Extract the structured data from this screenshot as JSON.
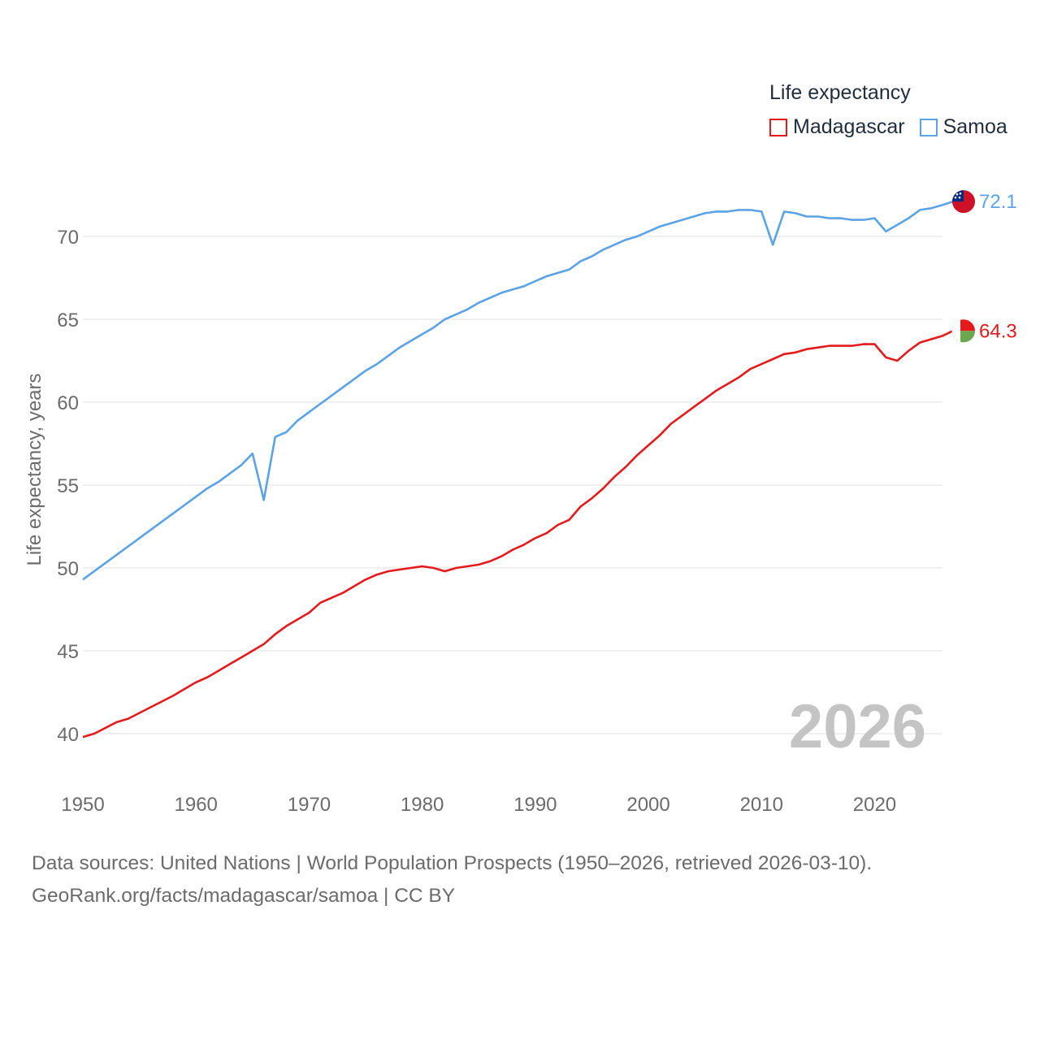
{
  "legend": {
    "title": "Life expectancy",
    "items": [
      {
        "label": "Madagascar",
        "color": "#e41a1c"
      },
      {
        "label": "Samoa",
        "color": "#5ba3e6"
      }
    ]
  },
  "sources": {
    "line1": "Data sources: United Nations | World Population Prospects (1950–2026, retrieved 2026-03-10).",
    "line2": "GeoRank.org/facts/madagascar/samoa | CC BY"
  },
  "chart_data": {
    "type": "line",
    "title": "Life expectancy",
    "xlabel": "",
    "ylabel": "Life expectancy, years",
    "xlim": [
      1950,
      2026
    ],
    "ylim": [
      38,
      73
    ],
    "grid": true,
    "year_watermark": "2026",
    "x_ticks": [
      1950,
      1960,
      1970,
      1980,
      1990,
      2000,
      2010,
      2020
    ],
    "y_ticks": [
      40,
      45,
      50,
      55,
      60,
      65,
      70
    ],
    "series": [
      {
        "name": "Madagascar",
        "color": "#e41a1c",
        "end_label": "64.3",
        "flag_icon": "madagascar-flag-icon",
        "points": [
          [
            1950,
            39.8
          ],
          [
            1951,
            40.0
          ],
          [
            1953,
            40.7
          ],
          [
            1954,
            40.9
          ],
          [
            1956,
            41.6
          ],
          [
            1958,
            42.3
          ],
          [
            1959,
            42.7
          ],
          [
            1960,
            43.1
          ],
          [
            1961,
            43.4
          ],
          [
            1962,
            43.8
          ],
          [
            1963,
            44.2
          ],
          [
            1964,
            44.6
          ],
          [
            1965,
            45.0
          ],
          [
            1966,
            45.4
          ],
          [
            1967,
            46.0
          ],
          [
            1968,
            46.5
          ],
          [
            1969,
            46.9
          ],
          [
            1970,
            47.3
          ],
          [
            1971,
            47.9
          ],
          [
            1972,
            48.2
          ],
          [
            1973,
            48.5
          ],
          [
            1974,
            48.9
          ],
          [
            1975,
            49.3
          ],
          [
            1976,
            49.6
          ],
          [
            1977,
            49.8
          ],
          [
            1978,
            49.9
          ],
          [
            1979,
            50.0
          ],
          [
            1980,
            50.1
          ],
          [
            1981,
            50.0
          ],
          [
            1982,
            49.8
          ],
          [
            1983,
            50.0
          ],
          [
            1984,
            50.1
          ],
          [
            1985,
            50.2
          ],
          [
            1986,
            50.4
          ],
          [
            1987,
            50.7
          ],
          [
            1988,
            51.1
          ],
          [
            1989,
            51.4
          ],
          [
            1990,
            51.8
          ],
          [
            1991,
            52.1
          ],
          [
            1992,
            52.6
          ],
          [
            1993,
            52.9
          ],
          [
            1994,
            53.7
          ],
          [
            1995,
            54.2
          ],
          [
            1996,
            54.8
          ],
          [
            1997,
            55.5
          ],
          [
            1998,
            56.1
          ],
          [
            1999,
            56.8
          ],
          [
            2000,
            57.4
          ],
          [
            2001,
            58.0
          ],
          [
            2002,
            58.7
          ],
          [
            2003,
            59.2
          ],
          [
            2004,
            59.7
          ],
          [
            2005,
            60.2
          ],
          [
            2006,
            60.7
          ],
          [
            2007,
            61.1
          ],
          [
            2008,
            61.5
          ],
          [
            2009,
            62.0
          ],
          [
            2010,
            62.3
          ],
          [
            2011,
            62.6
          ],
          [
            2012,
            62.9
          ],
          [
            2013,
            63.0
          ],
          [
            2014,
            63.2
          ],
          [
            2015,
            63.3
          ],
          [
            2016,
            63.4
          ],
          [
            2017,
            63.4
          ],
          [
            2018,
            63.4
          ],
          [
            2019,
            63.5
          ],
          [
            2020,
            63.5
          ],
          [
            2021,
            62.7
          ],
          [
            2022,
            62.5
          ],
          [
            2023,
            63.1
          ],
          [
            2024,
            63.6
          ],
          [
            2025,
            63.8
          ],
          [
            2026,
            64.0
          ],
          [
            2026.9,
            64.3
          ]
        ]
      },
      {
        "name": "Samoa",
        "color": "#5ba3e6",
        "end_label": "72.1",
        "flag_icon": "samoa-flag-icon",
        "points": [
          [
            1950,
            49.3
          ],
          [
            1951,
            49.8
          ],
          [
            1952,
            50.3
          ],
          [
            1953,
            50.8
          ],
          [
            1954,
            51.3
          ],
          [
            1955,
            51.8
          ],
          [
            1956,
            52.3
          ],
          [
            1957,
            52.8
          ],
          [
            1958,
            53.3
          ],
          [
            1959,
            53.8
          ],
          [
            1960,
            54.3
          ],
          [
            1961,
            54.8
          ],
          [
            1962,
            55.2
          ],
          [
            1963,
            55.7
          ],
          [
            1964,
            56.2
          ],
          [
            1965,
            56.9
          ],
          [
            1966,
            54.1
          ],
          [
            1967,
            57.9
          ],
          [
            1968,
            58.2
          ],
          [
            1969,
            58.9
          ],
          [
            1970,
            59.4
          ],
          [
            1971,
            59.9
          ],
          [
            1972,
            60.4
          ],
          [
            1973,
            60.9
          ],
          [
            1974,
            61.4
          ],
          [
            1975,
            61.9
          ],
          [
            1976,
            62.3
          ],
          [
            1977,
            62.8
          ],
          [
            1978,
            63.3
          ],
          [
            1979,
            63.7
          ],
          [
            1980,
            64.1
          ],
          [
            1981,
            64.5
          ],
          [
            1982,
            65.0
          ],
          [
            1983,
            65.3
          ],
          [
            1984,
            65.6
          ],
          [
            1985,
            66.0
          ],
          [
            1986,
            66.3
          ],
          [
            1987,
            66.6
          ],
          [
            1988,
            66.8
          ],
          [
            1989,
            67.0
          ],
          [
            1990,
            67.3
          ],
          [
            1991,
            67.6
          ],
          [
            1992,
            67.8
          ],
          [
            1993,
            68.0
          ],
          [
            1994,
            68.5
          ],
          [
            1995,
            68.8
          ],
          [
            1996,
            69.2
          ],
          [
            1997,
            69.5
          ],
          [
            1998,
            69.8
          ],
          [
            1999,
            70.0
          ],
          [
            2000,
            70.3
          ],
          [
            2001,
            70.6
          ],
          [
            2002,
            70.8
          ],
          [
            2003,
            71.0
          ],
          [
            2004,
            71.2
          ],
          [
            2005,
            71.4
          ],
          [
            2006,
            71.5
          ],
          [
            2007,
            71.5
          ],
          [
            2008,
            71.6
          ],
          [
            2009,
            71.6
          ],
          [
            2010,
            71.5
          ],
          [
            2011,
            69.5
          ],
          [
            2012,
            71.5
          ],
          [
            2013,
            71.4
          ],
          [
            2014,
            71.2
          ],
          [
            2015,
            71.2
          ],
          [
            2016,
            71.1
          ],
          [
            2017,
            71.1
          ],
          [
            2018,
            71.0
          ],
          [
            2019,
            71.0
          ],
          [
            2020,
            71.1
          ],
          [
            2021,
            70.3
          ],
          [
            2022,
            70.7
          ],
          [
            2023,
            71.1
          ],
          [
            2024,
            71.6
          ],
          [
            2025,
            71.7
          ],
          [
            2026,
            71.9
          ],
          [
            2026.9,
            72.1
          ]
        ]
      }
    ]
  }
}
